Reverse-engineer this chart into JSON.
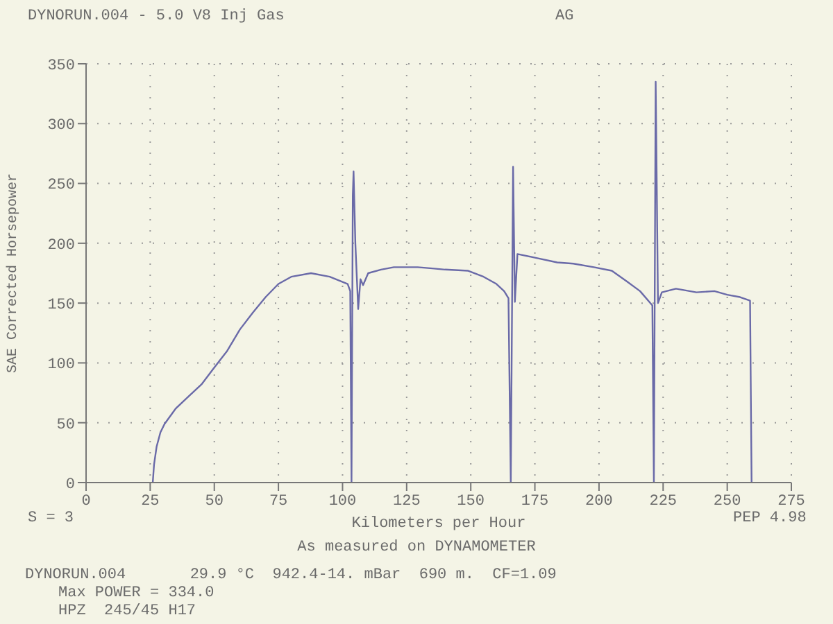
{
  "chart_data": {
    "type": "line",
    "title": "DYNORUN.004 - 5.0 V8 Inj Gas",
    "xlabel": "Kilometers per Hour",
    "ylabel": "SAE Corrected Horsepower",
    "x": [
      26,
      26.5,
      27.5,
      29,
      30.6,
      35,
      40,
      45,
      49.6,
      55,
      60,
      65,
      70,
      75,
      80,
      87.7,
      95,
      102,
      103,
      103.5,
      104,
      104.3,
      105,
      106.1,
      107,
      108,
      110,
      115,
      120,
      125.7,
      129.3,
      135,
      140,
      149,
      155,
      160,
      163,
      164.7,
      165.6,
      166.5,
      167.2,
      168.2,
      175,
      183.7,
      190,
      198,
      205,
      210.9,
      216,
      220.8,
      221.4,
      222.1,
      223,
      224.5,
      230,
      238,
      245,
      250,
      255,
      258.9,
      259.5
    ],
    "series": [
      {
        "color": "#6a6aa8",
        "values": [
          0,
          15,
          30,
          42,
          49,
          62,
          72,
          82,
          95,
          110,
          128,
          142,
          155,
          166,
          172,
          175,
          172,
          166,
          160,
          0,
          240,
          260,
          200,
          145,
          170,
          165,
          175,
          178,
          180,
          180,
          180,
          179,
          178,
          177,
          172,
          166,
          160,
          154,
          0,
          264,
          151,
          191,
          188,
          184,
          183,
          180,
          177,
          168,
          160,
          148,
          0,
          335,
          150,
          159,
          162,
          159,
          160,
          157,
          155,
          152,
          0
        ]
      }
    ],
    "xlim": [
      0,
      275
    ],
    "xticks": [
      0,
      25,
      50,
      75,
      100,
      125,
      150,
      175,
      200,
      225,
      250,
      275
    ],
    "ylim": [
      0,
      350
    ],
    "yticks": [
      0,
      50,
      100,
      150,
      200,
      250,
      300,
      350
    ],
    "grid": true,
    "marker": "none",
    "line_style": "solid",
    "annotations": [
      "AG",
      "S = 3",
      "PEP 4.98",
      "As measured on DYNAMOMETER",
      "DYNORUN.004       29.9 °C  942.4-14. mBar  690 m.  CF=1.09",
      "Max POWER = 334.0",
      "HPZ  245/45 H17"
    ]
  }
}
